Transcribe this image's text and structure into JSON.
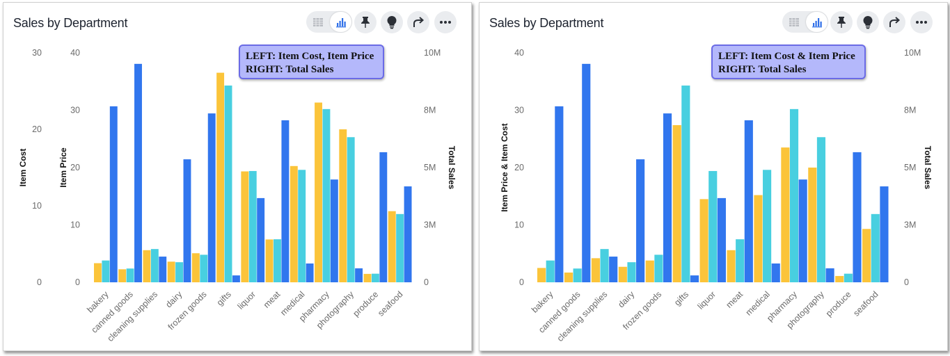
{
  "cards": [
    {
      "title": "Sales by Department",
      "annotation": {
        "line1": "LEFT: Item Cost, Item Price",
        "line2": "RIGHT: Total Sales"
      },
      "toolbar": [
        "table-icon",
        "bar-chart-icon",
        "pin-icon",
        "lightbulb-icon",
        "share-icon",
        "more-icon"
      ]
    },
    {
      "title": "Sales by Department",
      "annotation": {
        "line1": "LEFT: Item Cost & Item Price",
        "line2": "RIGHT: Total Sales"
      },
      "toolbar": [
        "table-icon",
        "bar-chart-icon",
        "pin-icon",
        "lightbulb-icon",
        "share-icon",
        "more-icon"
      ]
    }
  ],
  "colors": {
    "item_cost": "#fbc43a",
    "item_price": "#48cfe0",
    "total_sales": "#3176ee",
    "annotation_bg": "#b4b8fb",
    "annotation_border": "#6b6be6"
  },
  "chart_data": [
    {
      "type": "bar",
      "title": "Sales by Department",
      "categories": [
        "bakery",
        "canned goods",
        "cleaning supplies",
        "dairy",
        "frozen goods",
        "gifts",
        "liquor",
        "meat",
        "medical",
        "pharmacy",
        "photography",
        "produce",
        "seafood"
      ],
      "axes": [
        {
          "id": "cost",
          "side": "left",
          "label": "Item Cost",
          "range": [
            0,
            30
          ],
          "ticks": [
            {
              "v": 0,
              "t": "0"
            },
            {
              "v": 10,
              "t": "10"
            },
            {
              "v": 20,
              "t": "20"
            },
            {
              "v": 30,
              "t": "30"
            }
          ]
        },
        {
          "id": "price",
          "side": "left",
          "label": "Item Price",
          "range": [
            0,
            40
          ],
          "ticks": [
            {
              "v": 0,
              "t": "0"
            },
            {
              "v": 10,
              "t": "10"
            },
            {
              "v": 20,
              "t": "20"
            },
            {
              "v": 30,
              "t": "30"
            },
            {
              "v": 40,
              "t": "40"
            }
          ]
        },
        {
          "id": "sales",
          "side": "right",
          "label": "Total Sales",
          "range": [
            0,
            10000000
          ],
          "ticks": [
            {
              "v": 0,
              "t": "0"
            },
            {
              "v": 2500000,
              "t": "3M"
            },
            {
              "v": 5000000,
              "t": "5M"
            },
            {
              "v": 7500000,
              "t": "8M"
            },
            {
              "v": 10000000,
              "t": "10M"
            }
          ]
        }
      ],
      "series": [
        {
          "name": "Item Cost",
          "axis": "cost",
          "color": "#fbc43a",
          "values": [
            2.5,
            1.7,
            4.2,
            2.7,
            3.8,
            27.4,
            14.5,
            5.6,
            15.2,
            23.5,
            20.0,
            1.1,
            9.3
          ]
        },
        {
          "name": "Item Price",
          "axis": "price",
          "color": "#48cfe0",
          "values": [
            3.8,
            2.4,
            5.8,
            3.5,
            4.8,
            34.3,
            19.4,
            7.5,
            19.6,
            30.2,
            25.3,
            1.5,
            11.9
          ]
        },
        {
          "name": "Total Sales",
          "axis": "sales",
          "color": "#3176ee",
          "values": [
            7670000,
            9520000,
            1120000,
            5360000,
            7360000,
            300000,
            3670000,
            7060000,
            820000,
            4480000,
            610000,
            5670000,
            4180000
          ]
        }
      ],
      "grid": false,
      "legend": "none"
    },
    {
      "type": "bar",
      "title": "Sales by Department",
      "categories": [
        "bakery",
        "canned goods",
        "cleaning supplies",
        "dairy",
        "frozen goods",
        "gifts",
        "liquor",
        "meat",
        "medical",
        "pharmacy",
        "photography",
        "produce",
        "seafood"
      ],
      "axes": [
        {
          "id": "shared",
          "side": "left",
          "label": "Item Price & Item Cost",
          "range": [
            0,
            40
          ],
          "ticks": [
            {
              "v": 0,
              "t": "0"
            },
            {
              "v": 10,
              "t": "10"
            },
            {
              "v": 20,
              "t": "20"
            },
            {
              "v": 30,
              "t": "30"
            },
            {
              "v": 40,
              "t": "40"
            }
          ]
        },
        {
          "id": "sales",
          "side": "right",
          "label": "Total Sales",
          "range": [
            0,
            10000000
          ],
          "ticks": [
            {
              "v": 0,
              "t": "0"
            },
            {
              "v": 2500000,
              "t": "3M"
            },
            {
              "v": 5000000,
              "t": "5M"
            },
            {
              "v": 7500000,
              "t": "8M"
            },
            {
              "v": 10000000,
              "t": "10M"
            }
          ]
        }
      ],
      "series": [
        {
          "name": "Item Cost",
          "axis": "shared",
          "color": "#fbc43a",
          "values": [
            2.5,
            1.7,
            4.2,
            2.7,
            3.8,
            27.4,
            14.5,
            5.6,
            15.2,
            23.5,
            20.0,
            1.1,
            9.3
          ]
        },
        {
          "name": "Item Price",
          "axis": "shared",
          "color": "#48cfe0",
          "values": [
            3.8,
            2.4,
            5.8,
            3.5,
            4.8,
            34.3,
            19.4,
            7.5,
            19.6,
            30.2,
            25.3,
            1.5,
            11.9
          ]
        },
        {
          "name": "Total Sales",
          "axis": "sales",
          "color": "#3176ee",
          "values": [
            7670000,
            9520000,
            1120000,
            5360000,
            7360000,
            300000,
            3670000,
            7060000,
            820000,
            4480000,
            610000,
            5670000,
            4180000
          ]
        }
      ],
      "grid": false,
      "legend": "none"
    }
  ]
}
